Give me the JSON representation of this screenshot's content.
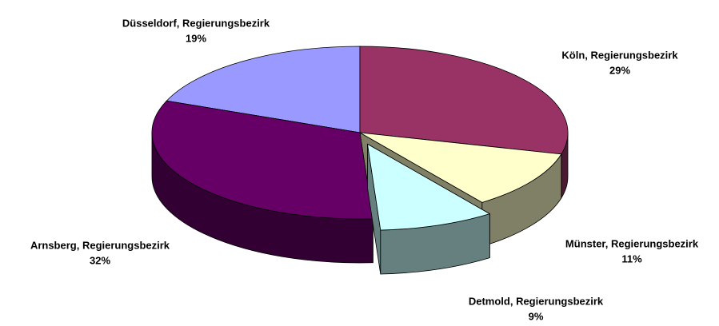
{
  "chart_data": {
    "type": "pie3d",
    "categories": [
      "Köln, Regierungsbezirk",
      "Münster, Regierungsbezirk",
      "Detmold, Regierungsbezirk",
      "Arnsberg, Regierungsbezirk",
      "Düsseldorf, Regierungsbezirk"
    ],
    "values": [
      29,
      11,
      9,
      32,
      19
    ],
    "value_labels": [
      "29%",
      "11%",
      "9%",
      "32%",
      "19%"
    ],
    "colors": [
      "#993366",
      "#ffffcc",
      "#ccffff",
      "#660066",
      "#9999ff"
    ],
    "exploded": [
      false,
      false,
      true,
      false,
      false
    ]
  }
}
